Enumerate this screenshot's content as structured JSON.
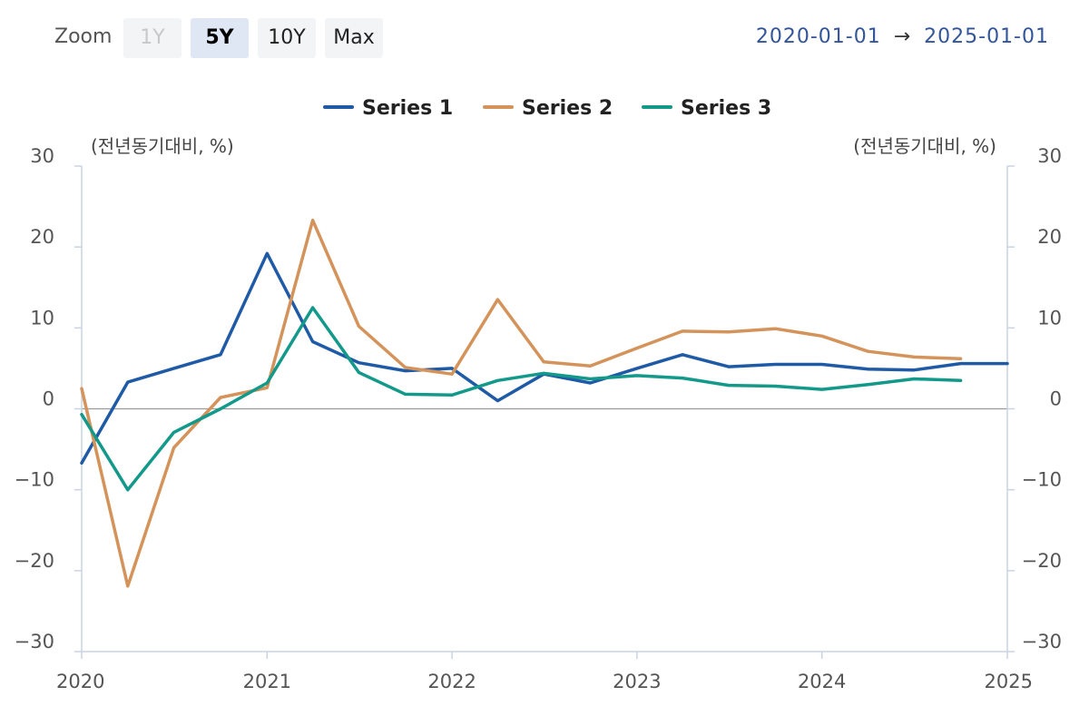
{
  "toolbar": {
    "zoom_label": "Zoom",
    "buttons": [
      {
        "label": "1Y",
        "state": "disabled"
      },
      {
        "label": "5Y",
        "state": "active"
      },
      {
        "label": "10Y",
        "state": "normal"
      },
      {
        "label": "Max",
        "state": "normal"
      }
    ],
    "date_from": "2020-01-01",
    "date_arrow": "→",
    "date_to": "2025-01-01"
  },
  "chart_data": {
    "type": "line",
    "title": "",
    "ylabel_left": "(전년동기대비, %)",
    "ylabel_right": "(전년동기대비, %)",
    "ylim": [
      -30,
      30
    ],
    "yticks": [
      30,
      20,
      10,
      0,
      -10,
      -20,
      -30
    ],
    "ytick_labels": [
      "30",
      "20",
      "10",
      "0",
      "−10",
      "−20",
      "−30"
    ],
    "xlim": [
      "2020-01-01",
      "2025-01-01"
    ],
    "xticks": [
      "2020",
      "2021",
      "2022",
      "2023",
      "2024",
      "2025"
    ],
    "x": [
      "2020-01-01",
      "2020-04-01",
      "2020-07-01",
      "2020-10-01",
      "2021-01-01",
      "2021-04-01",
      "2021-07-01",
      "2021-10-01",
      "2022-01-01",
      "2022-04-01",
      "2022-07-01",
      "2022-10-01",
      "2023-01-01",
      "2023-04-01",
      "2023-07-01",
      "2023-10-01",
      "2024-01-01",
      "2024-04-01",
      "2024-07-01",
      "2024-10-01",
      "2025-01-01"
    ],
    "legend_position": "top-center",
    "zero_line": true,
    "series": [
      {
        "name": "Series 1",
        "color": "#1f5aa6",
        "values": [
          -6.7,
          3.3,
          5.0,
          6.7,
          19.2,
          8.3,
          5.7,
          4.7,
          5.0,
          1.0,
          4.3,
          3.2,
          5.0,
          6.7,
          5.2,
          5.5,
          5.5,
          4.9,
          4.8,
          5.6,
          5.6
        ]
      },
      {
        "name": "Series 2",
        "color": "#d4935a",
        "values": [
          2.5,
          -21.9,
          -4.8,
          1.4,
          2.6,
          23.3,
          10.2,
          5.1,
          4.3,
          13.5,
          5.8,
          5.3,
          7.5,
          9.6,
          9.5,
          9.9,
          9.0,
          7.1,
          6.4,
          6.2,
          null
        ]
      },
      {
        "name": "Series 3",
        "color": "#12998a",
        "values": [
          -0.7,
          -10.0,
          -2.9,
          0.0,
          3.2,
          12.5,
          4.5,
          1.8,
          1.7,
          3.5,
          4.4,
          3.7,
          4.1,
          3.8,
          2.9,
          2.8,
          2.4,
          3.0,
          3.7,
          3.5,
          null
        ]
      }
    ]
  }
}
